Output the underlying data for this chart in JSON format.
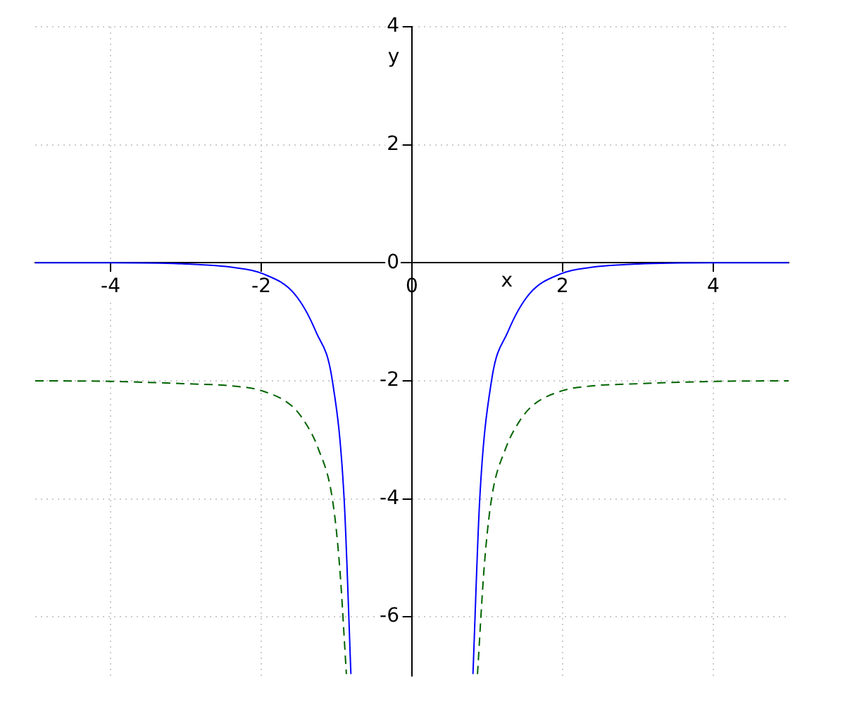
{
  "chart_data": {
    "type": "line",
    "xlabel": "x",
    "ylabel": "y",
    "xlim": [
      -5,
      5
    ],
    "ylim": [
      -7,
      4
    ],
    "xticks": [
      -4,
      -2,
      0,
      2,
      4
    ],
    "yticks": [
      -6,
      -4,
      -2,
      0,
      2,
      4
    ],
    "grid": true,
    "legend": false,
    "marker": "none",
    "series": [
      {
        "color": "#0000ff",
        "line_style": "solid",
        "x": [
          -5,
          -4,
          -3,
          -2.36,
          -1.99,
          -1.55,
          -1.27,
          -1.056,
          -0.9,
          -0.81,
          null,
          0.81,
          0.9,
          1.056,
          1.27,
          1.55,
          1.99,
          2.36,
          3,
          4,
          5
        ],
        "values": [
          0,
          0,
          -0.02,
          -0.08,
          -0.18,
          -0.54,
          -1.18,
          -2,
          -4,
          -6.97,
          null,
          -6.97,
          -4,
          -2,
          -1.18,
          -0.54,
          -0.18,
          -0.08,
          -0.02,
          0,
          0
        ]
      },
      {
        "color": "#006400",
        "line_style": "dashed",
        "x": [
          -5,
          -4,
          -3,
          -2.36,
          -1.99,
          -1.61,
          -1.43,
          -1.24,
          -1.056,
          -0.96,
          -0.87,
          null,
          0.87,
          0.96,
          1.056,
          1.24,
          1.43,
          1.61,
          1.99,
          2.36,
          3,
          4,
          5
        ],
        "values": [
          -2,
          -2.01,
          -2.05,
          -2.09,
          -2.17,
          -2.41,
          -2.68,
          -3.16,
          -4,
          -5.14,
          -6.97,
          null,
          -6.97,
          -5.14,
          -4,
          -3.16,
          -2.68,
          -2.41,
          -2.17,
          -2.09,
          -2.05,
          -2.01,
          -2
        ]
      }
    ]
  }
}
